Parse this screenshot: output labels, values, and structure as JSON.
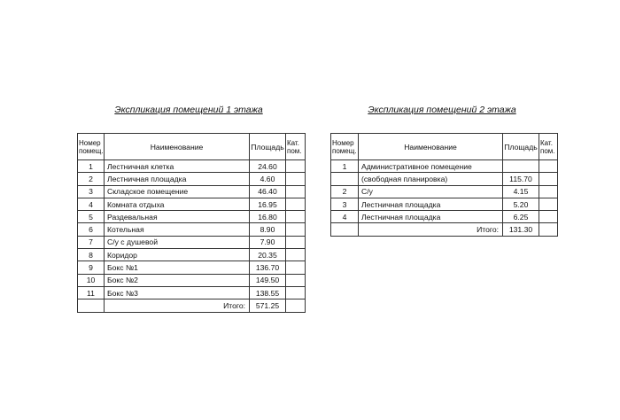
{
  "floor1": {
    "title": "Экспликация помещений 1 этажа",
    "headers": {
      "num": "Номер помещ.",
      "name": "Наименование",
      "area": "Площадь",
      "cat": "Кат. пом."
    },
    "rows": [
      {
        "num": "1",
        "name": "Лестничная клетка",
        "area": "24.60"
      },
      {
        "num": "2",
        "name": "Лестничная площадка",
        "area": "4.60"
      },
      {
        "num": "3",
        "name": "Складское помещение",
        "area": "46.40"
      },
      {
        "num": "4",
        "name": "Комната отдыха",
        "area": "16.95"
      },
      {
        "num": "5",
        "name": "Раздевальная",
        "area": "16.80"
      },
      {
        "num": "6",
        "name": "Котельная",
        "area": "8.90"
      },
      {
        "num": "7",
        "name": "С/у с душевой",
        "area": "7.90"
      },
      {
        "num": "8",
        "name": "Коридор",
        "area": "20.35"
      },
      {
        "num": "9",
        "name": "Бокс №1",
        "area": "136.70"
      },
      {
        "num": "10",
        "name": "Бокс №2",
        "area": "149.50"
      },
      {
        "num": "11",
        "name": "Бокс №3",
        "area": "138.55"
      }
    ],
    "total_label": "Итого:",
    "total": "571.25"
  },
  "floor2": {
    "title": "Экспликация помещений 2 этажа",
    "headers": {
      "num": "Номер помещ.",
      "name": "Наименование",
      "area": "Площадь",
      "cat": "Кат. пом."
    },
    "rows": [
      {
        "num": "1",
        "name": "Административное помещение",
        "area": ""
      },
      {
        "num": "",
        "name": "(свободная планировка)",
        "area": "115.70"
      },
      {
        "num": "2",
        "name": "С/у",
        "area": "4.15"
      },
      {
        "num": "3",
        "name": "Лестничная площадка",
        "area": "5.20"
      },
      {
        "num": "4",
        "name": "Лестничная площадка",
        "area": "6.25"
      }
    ],
    "total_label": "Итого:",
    "total": "131.30"
  }
}
